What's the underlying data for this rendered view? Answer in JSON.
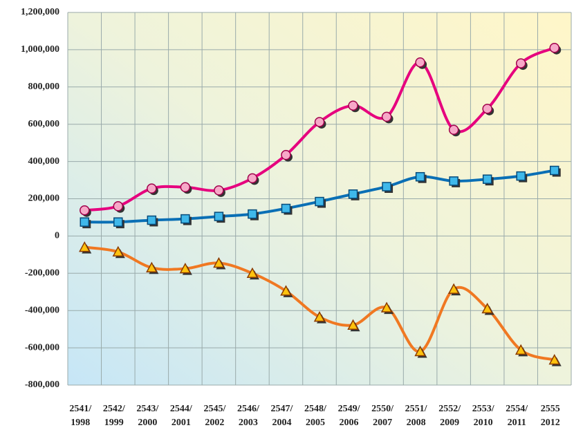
{
  "chart_data": {
    "type": "line",
    "categories": [
      [
        "2541/",
        "1998"
      ],
      [
        "2542/",
        "1999"
      ],
      [
        "2543/",
        "2000"
      ],
      [
        "2544/",
        "2001"
      ],
      [
        "2545/",
        "2002"
      ],
      [
        "2546/",
        "2003"
      ],
      [
        "2547/",
        "2004"
      ],
      [
        "2548/",
        "2005"
      ],
      [
        "2549/",
        "2006"
      ],
      [
        "2550/",
        "2007"
      ],
      [
        "2551/",
        "2008"
      ],
      [
        "2552/",
        "2009"
      ],
      [
        "2553/",
        "2010"
      ],
      [
        "2554/",
        "2011"
      ],
      [
        "2555",
        "2012"
      ]
    ],
    "series": [
      {
        "color": "#e6007e",
        "marker": "circle",
        "marker_color": "#f7a8c8",
        "values": [
          138000,
          160000,
          255000,
          262000,
          245000,
          310000,
          435000,
          612000,
          700000,
          640000,
          932000,
          570000,
          683000,
          927000,
          1010000
        ]
      },
      {
        "color": "#0a6fb5",
        "marker": "square",
        "marker_color": "#3fb8ea",
        "values": [
          75000,
          75000,
          85000,
          92000,
          105000,
          118000,
          148000,
          185000,
          225000,
          265000,
          318000,
          295000,
          305000,
          322000,
          352000
        ]
      },
      {
        "color": "#f07822",
        "marker": "triangle",
        "marker_color": "#ffc20e",
        "values": [
          -60000,
          -85000,
          -170000,
          -175000,
          -145000,
          -200000,
          -295000,
          -435000,
          -478000,
          -385000,
          -620000,
          -285000,
          -390000,
          -612000,
          -665000
        ]
      }
    ],
    "ylim": [
      -800000,
      1200000
    ],
    "yticks": [
      {
        "value": -800000,
        "label": "-800,000"
      },
      {
        "value": -600000,
        "label": "-600,000"
      },
      {
        "value": -400000,
        "label": "-400,000"
      },
      {
        "value": -200000,
        "label": "-200,000"
      },
      0,
      {
        "value": 200000,
        "label": "200,000"
      },
      {
        "value": 400000,
        "label": "400,000"
      },
      {
        "value": 600000,
        "label": "600,000"
      },
      {
        "value": 800000,
        "label": "800,000"
      },
      {
        "value": 1000000,
        "label": "1,000,000"
      },
      {
        "value": 1200000,
        "label": "1,200,000"
      }
    ],
    "grid": true
  }
}
